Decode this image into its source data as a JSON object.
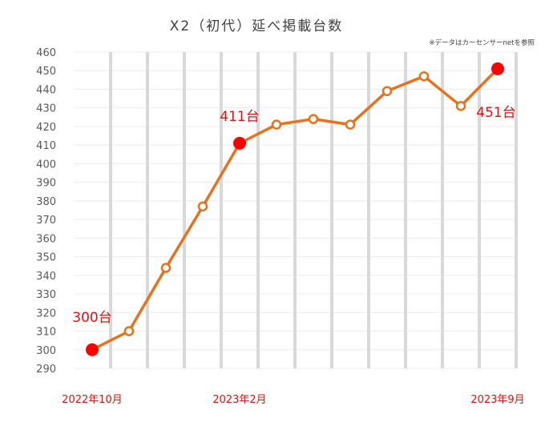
{
  "chart_data": {
    "type": "line",
    "title": "X2（初代）延べ掲載台数",
    "note": "※データはカーセンサーnetを参照",
    "xlabel": "",
    "ylabel": "",
    "ylim": [
      290,
      460
    ],
    "ytick_step": 10,
    "grid": true,
    "x": [
      "2022-10",
      "2022-11",
      "2022-12",
      "2023-01",
      "2023-02",
      "2023-03",
      "2023-04",
      "2023-05",
      "2023-06",
      "2023-07",
      "2023-08",
      "2023-09"
    ],
    "x_tick_labels": [
      {
        "index": 0,
        "label": "2022年10月"
      },
      {
        "index": 4,
        "label": "2023年2月"
      },
      {
        "index": 11,
        "label": "2023年9月"
      }
    ],
    "series": [
      {
        "values": [
          300,
          310,
          344,
          377,
          411,
          421,
          424,
          421,
          439,
          447,
          431,
          451
        ]
      }
    ],
    "highlights": [
      {
        "index": 0,
        "label": "300台"
      },
      {
        "index": 4,
        "label": "411台"
      },
      {
        "index": 11,
        "label": "451台"
      }
    ],
    "colors": {
      "line": "#e8721c",
      "highlight": "#ff0000",
      "label": "#e01010",
      "grid_band": "#d9d9d9",
      "axis_text": "#595959",
      "title": "#404040"
    }
  }
}
